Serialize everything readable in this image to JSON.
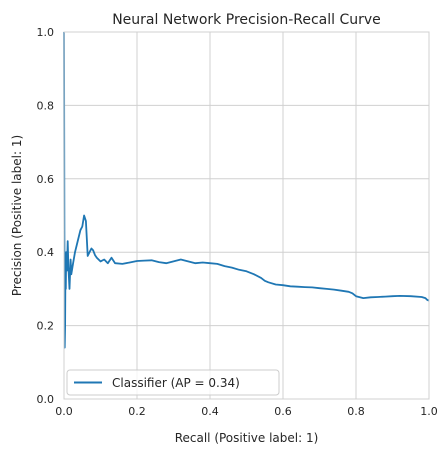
{
  "chart_data": {
    "type": "line",
    "title": "Neural Network Precision-Recall Curve",
    "xlabel": "Recall (Positive label: 1)",
    "ylabel": "Precision (Positive label: 1)",
    "xlim": [
      0.0,
      1.0
    ],
    "ylim": [
      0.0,
      1.0
    ],
    "xticks": [
      "0.0",
      "0.2",
      "0.4",
      "0.6",
      "0.8",
      "1.0"
    ],
    "yticks": [
      "0.0",
      "0.2",
      "0.4",
      "0.6",
      "0.8",
      "1.0"
    ],
    "grid": true,
    "legend_position": "lower-left",
    "series": [
      {
        "name": "Classifier (AP = 0.34)",
        "color": "#1f77b4",
        "x": [
          1.0,
          0.995,
          0.99,
          0.98,
          0.95,
          0.92,
          0.9,
          0.88,
          0.86,
          0.84,
          0.82,
          0.8,
          0.79,
          0.78,
          0.76,
          0.74,
          0.72,
          0.7,
          0.68,
          0.66,
          0.64,
          0.62,
          0.6,
          0.58,
          0.56,
          0.55,
          0.54,
          0.52,
          0.5,
          0.48,
          0.46,
          0.44,
          0.42,
          0.4,
          0.38,
          0.36,
          0.34,
          0.32,
          0.3,
          0.28,
          0.26,
          0.24,
          0.22,
          0.2,
          0.18,
          0.16,
          0.14,
          0.13,
          0.12,
          0.11,
          0.1,
          0.09,
          0.085,
          0.08,
          0.075,
          0.07,
          0.065,
          0.06,
          0.055,
          0.05,
          0.045,
          0.04,
          0.035,
          0.03,
          0.025,
          0.02,
          0.018,
          0.015,
          0.012,
          0.01,
          0.008,
          0.006,
          0.005,
          0.004,
          0.003,
          0.002,
          0.002,
          0.001,
          0.0
        ],
        "y": [
          0.268,
          0.27,
          0.275,
          0.278,
          0.28,
          0.281,
          0.28,
          0.279,
          0.278,
          0.277,
          0.275,
          0.28,
          0.288,
          0.292,
          0.295,
          0.298,
          0.3,
          0.302,
          0.304,
          0.305,
          0.306,
          0.307,
          0.31,
          0.312,
          0.318,
          0.322,
          0.33,
          0.34,
          0.348,
          0.352,
          0.358,
          0.362,
          0.368,
          0.37,
          0.372,
          0.37,
          0.375,
          0.38,
          0.375,
          0.37,
          0.373,
          0.378,
          0.377,
          0.376,
          0.372,
          0.368,
          0.37,
          0.385,
          0.37,
          0.38,
          0.375,
          0.385,
          0.392,
          0.405,
          0.41,
          0.4,
          0.39,
          0.485,
          0.5,
          0.47,
          0.46,
          0.44,
          0.42,
          0.4,
          0.37,
          0.34,
          0.38,
          0.3,
          0.36,
          0.43,
          0.35,
          0.4,
          0.3,
          0.38,
          0.2,
          0.14,
          0.25,
          0.45,
          1.0
        ]
      }
    ]
  }
}
